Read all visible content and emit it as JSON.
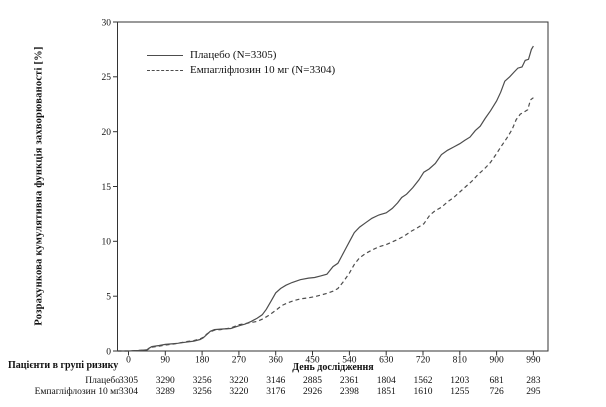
{
  "figure": {
    "risk_table": {
      "header": "Пацієнти в групі ризику",
      "rows": [
        {
          "label": "Плацебо",
          "values": [
            3305,
            3290,
            3256,
            3220,
            3146,
            2885,
            2361,
            1804,
            1562,
            1203,
            681,
            283
          ]
        },
        {
          "label": "Емпагліфлозин 10 мг",
          "values": [
            3304,
            3289,
            3256,
            3220,
            3176,
            2926,
            2398,
            1851,
            1610,
            1255,
            726,
            295
          ]
        }
      ]
    }
  },
  "chart_data": {
    "type": "line",
    "title": "",
    "xlabel": "День дослідження",
    "ylabel": "Розрахункова кумулятивна функція захворюваності [%]",
    "xlim": [
      0,
      1027
    ],
    "ylim": [
      0,
      30
    ],
    "x_ticks": [
      0,
      90,
      180,
      270,
      360,
      450,
      540,
      630,
      720,
      810,
      900,
      990
    ],
    "y_ticks": [
      0,
      5,
      10,
      15,
      20,
      25,
      30
    ],
    "grid": false,
    "legend_position": "top-left-inside",
    "line_color": "#4d4d4d",
    "series": [
      {
        "name": "Плацебо (N=3305)",
        "style": "solid",
        "x": [
          0,
          25,
          45,
          50,
          57,
          75,
          90,
          105,
          120,
          140,
          160,
          175,
          183,
          190,
          200,
          210,
          225,
          250,
          270,
          285,
          300,
          315,
          327,
          337,
          348,
          360,
          372,
          385,
          400,
          420,
          440,
          455,
          470,
          485,
          500,
          512,
          522,
          532,
          542,
          552,
          565,
          580,
          595,
          612,
          630,
          645,
          658,
          668,
          680,
          695,
          710,
          722,
          735,
          750,
          765,
          780,
          795,
          810,
          822,
          835,
          848,
          860,
          872,
          885,
          900,
          910,
          920,
          932,
          942,
          952,
          962,
          970,
          978,
          985,
          990
        ],
        "y": [
          0,
          0.05,
          0.1,
          0.25,
          0.4,
          0.5,
          0.6,
          0.65,
          0.7,
          0.8,
          0.9,
          1.05,
          1.2,
          1.45,
          1.8,
          1.95,
          2.0,
          2.05,
          2.3,
          2.45,
          2.7,
          3.0,
          3.3,
          3.8,
          4.5,
          5.3,
          5.7,
          6.0,
          6.25,
          6.5,
          6.65,
          6.7,
          6.85,
          7.0,
          7.7,
          8.0,
          8.7,
          9.4,
          10.1,
          10.8,
          11.3,
          11.7,
          12.1,
          12.4,
          12.6,
          13.0,
          13.5,
          14.0,
          14.3,
          14.9,
          15.6,
          16.3,
          16.6,
          17.1,
          17.9,
          18.3,
          18.6,
          18.9,
          19.2,
          19.5,
          20.1,
          20.5,
          21.2,
          21.9,
          22.8,
          23.6,
          24.6,
          25.0,
          25.4,
          25.8,
          25.9,
          26.5,
          26.6,
          27.5,
          27.8
        ]
      },
      {
        "name": "Емпагліфлозин 10 мг (N=3304)",
        "style": "dashed",
        "x": [
          0,
          25,
          45,
          50,
          57,
          75,
          90,
          105,
          120,
          140,
          160,
          175,
          183,
          190,
          200,
          210,
          225,
          250,
          270,
          285,
          300,
          315,
          330,
          345,
          360,
          375,
          390,
          405,
          420,
          440,
          455,
          470,
          485,
          500,
          512,
          525,
          540,
          552,
          565,
          580,
          595,
          612,
          630,
          645,
          660,
          675,
          690,
          705,
          722,
          737,
          750,
          765,
          780,
          795,
          810,
          825,
          840,
          855,
          870,
          885,
          900,
          912,
          925,
          938,
          948,
          958,
          968,
          976,
          983,
          990
        ],
        "y": [
          0,
          0.05,
          0.1,
          0.2,
          0.35,
          0.45,
          0.55,
          0.6,
          0.7,
          0.85,
          0.95,
          1.1,
          1.25,
          1.5,
          1.75,
          1.9,
          1.95,
          2.1,
          2.4,
          2.5,
          2.6,
          2.7,
          2.95,
          3.3,
          3.7,
          4.15,
          4.4,
          4.6,
          4.75,
          4.85,
          4.95,
          5.1,
          5.25,
          5.45,
          5.7,
          6.3,
          7.1,
          7.9,
          8.5,
          8.9,
          9.2,
          9.5,
          9.7,
          9.95,
          10.2,
          10.5,
          10.9,
          11.2,
          11.6,
          12.4,
          12.8,
          13.1,
          13.6,
          14.0,
          14.5,
          15.0,
          15.5,
          16.1,
          16.6,
          17.2,
          18.0,
          18.7,
          19.4,
          20.2,
          21.1,
          21.6,
          21.8,
          22.0,
          22.9,
          23.1
        ]
      }
    ]
  }
}
